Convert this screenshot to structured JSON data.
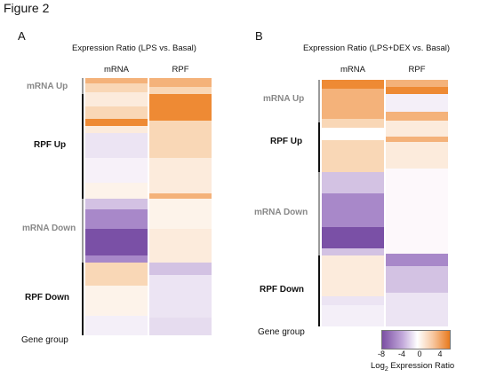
{
  "figure_label": "Figure 2",
  "panels": [
    {
      "letter": "A",
      "title": "Expression Ratio (LPS vs. Basal)",
      "columns": [
        "mRNA",
        "RPF"
      ],
      "groups": [
        {
          "label": "mRNA Up",
          "shade": "dim"
        },
        {
          "label": "RPF Up",
          "shade": "dark"
        },
        {
          "label": "mRNA Down",
          "shade": "dim"
        },
        {
          "label": "RPF Down",
          "shade": "dark"
        }
      ],
      "gene_group_label": "Gene group"
    },
    {
      "letter": "B",
      "title": "Expression Ratio (LPS+DEX vs. Basal)",
      "columns": [
        "mRNA",
        "RPF"
      ],
      "groups": [
        {
          "label": "mRNA Up",
          "shade": "dim"
        },
        {
          "label": "RPF Up",
          "shade": "dark"
        },
        {
          "label": "mRNA Down",
          "shade": "dim"
        },
        {
          "label": "RPF Down",
          "shade": "dark"
        }
      ],
      "gene_group_label": "Gene group"
    }
  ],
  "legend": {
    "ticks": [
      "-8",
      "-4",
      "0",
      "4"
    ],
    "label_prefix": "Log",
    "label_sub": "2",
    "label_suffix": " Expression Ratio",
    "colors": {
      "low": "#7b4fa3",
      "mid": "#ffffff",
      "high": "#e87a1e"
    }
  },
  "heatmap_colors": {
    "orange_strong": "#ee8a34",
    "orange_mid": "#f4b27a",
    "orange_light": "#f9d7b6",
    "orange_pale": "#fcebdc",
    "purple_strong": "#7a50a6",
    "purple_mid": "#a888c9",
    "purple_light": "#d3c2e3",
    "purple_pale": "#ece4f3",
    "white": "#ffffff"
  }
}
